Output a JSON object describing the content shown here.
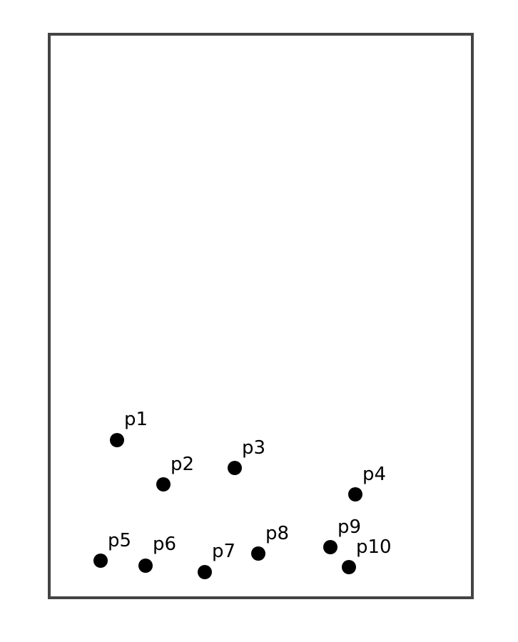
{
  "points": [
    {
      "id": "p1",
      "label": "p1"
    },
    {
      "id": "p2",
      "label": "p2"
    },
    {
      "id": "p3",
      "label": "p3"
    },
    {
      "id": "p4",
      "label": "p4"
    },
    {
      "id": "p5",
      "label": "p5"
    },
    {
      "id": "p6",
      "label": "p6"
    },
    {
      "id": "p7",
      "label": "p7"
    },
    {
      "id": "p8",
      "label": "p8"
    },
    {
      "id": "p9",
      "label": "p9"
    },
    {
      "id": "p10",
      "label": "p10"
    }
  ],
  "colors": {
    "frame": "#444444",
    "point": "#000000",
    "label": "#000000",
    "background": "#ffffff"
  }
}
